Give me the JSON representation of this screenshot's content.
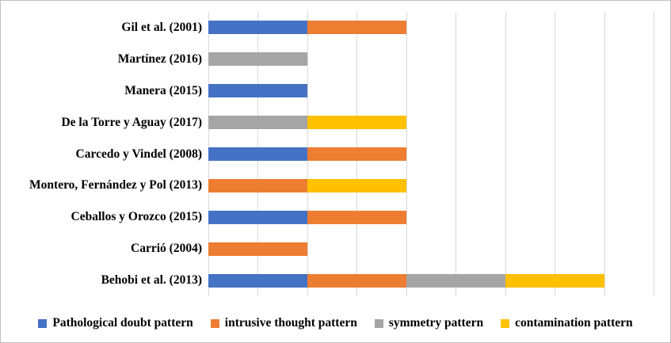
{
  "figure": {
    "background": "#ffffff",
    "border_color": "#bfbfbf"
  },
  "chart_data": {
    "type": "bar",
    "orientation": "horizontal",
    "stacked": true,
    "title": "",
    "xlabel": "",
    "ylabel": "",
    "categories": [
      "Gil et al. (2001)",
      "Martínez (2016)",
      "Manera (2015)",
      "De la Torre y Aguay (2017)",
      "Carcedo y Vindel (2008)",
      "Montero, Fernández y Pol (2013)",
      "Ceballos y Orozco (2015)",
      "Carrió (2004)",
      "Behobi et al. (2013)"
    ],
    "series": [
      {
        "name": "Pathological doubt pattern",
        "color": "#4472C4",
        "values": [
          1,
          0,
          1,
          0,
          1,
          0,
          1,
          0,
          1
        ]
      },
      {
        "name": "intrusive thought pattern",
        "color": "#ED7D31",
        "values": [
          1,
          0,
          0,
          0,
          1,
          1,
          1,
          1,
          1
        ]
      },
      {
        "name": "symmetry pattern",
        "color": "#A5A5A5",
        "values": [
          0,
          1,
          0,
          1,
          0,
          0,
          0,
          0,
          1
        ]
      },
      {
        "name": "contamination pattern",
        "color": "#FFC000",
        "values": [
          0,
          0,
          0,
          1,
          0,
          1,
          0,
          0,
          1
        ]
      }
    ],
    "xlim": [
      0,
      4.5
    ],
    "x_gridline_step": 0.5,
    "gridline_color": "#d9d9d9",
    "x_axis_tick_labels_visible": false,
    "grid": true,
    "legend_position": "bottom"
  }
}
